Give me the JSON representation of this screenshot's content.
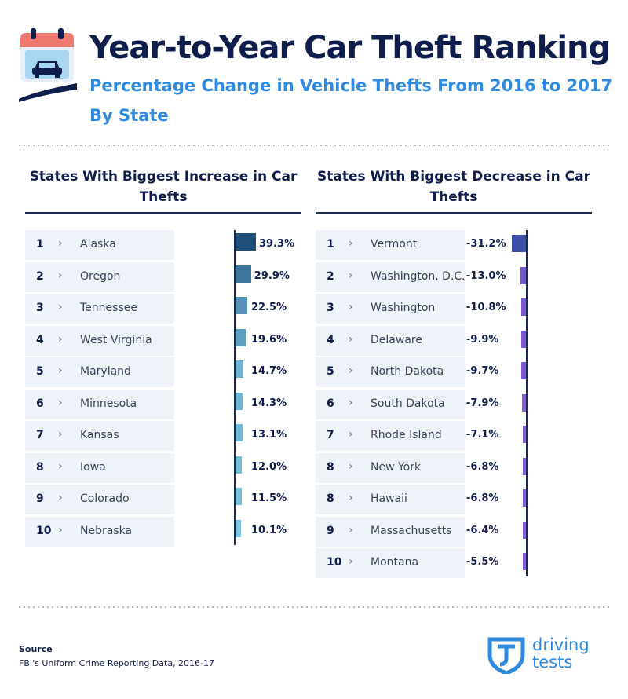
{
  "header": {
    "title": "Year-to-Year Car Theft Ranking",
    "subtitle": "Percentage Change in Vehicle Thefts From 2016 to 2017 By State",
    "icon": "calendar-car-icon"
  },
  "panels": {
    "increase_heading": "States With Biggest Increase in Car Thefts",
    "decrease_heading": "States With Biggest Decrease in Car Thefts"
  },
  "footer": {
    "source_label": "Source",
    "source_text": "FBI's Uniform Crime Reporting Data, 2016-17",
    "logo_line1": "driving",
    "logo_line2": "tests"
  },
  "colors": {
    "navy": "#0f1d4d",
    "accent_blue": "#2d8ae0",
    "increase_dark": "#1f4f78",
    "increase_light": "#7cc4e4",
    "decrease_dark": "#3b4fa6",
    "decrease_light": "#8b5ce6"
  },
  "chart_data": [
    {
      "type": "bar",
      "title": "States With Biggest Increase in Car Thefts",
      "ranks": [
        "1",
        "2",
        "3",
        "4",
        "5",
        "6",
        "7",
        "8",
        "9",
        "10"
      ],
      "categories": [
        "Alaska",
        "Oregon",
        "Tennessee",
        "West Virginia",
        "Maryland",
        "Minnesota",
        "Kansas",
        "Iowa",
        "Colorado",
        "Nebraska"
      ],
      "values": [
        39.3,
        29.9,
        22.5,
        19.6,
        14.7,
        14.3,
        13.1,
        12.0,
        11.5,
        10.1
      ],
      "labels": [
        "39.3%",
        "29.9%",
        "22.5%",
        "19.6%",
        "14.7%",
        "14.3%",
        "13.1%",
        "12.0%",
        "11.5%",
        "10.1%"
      ],
      "unit": "%"
    },
    {
      "type": "bar",
      "title": "States With Biggest Decrease in Car Thefts",
      "ranks": [
        "1",
        "2",
        "3",
        "4",
        "5",
        "6",
        "7",
        "8",
        "8",
        "9",
        "10"
      ],
      "categories": [
        "Vermont",
        "Washington, D.C.",
        "Washington",
        "Delaware",
        "North Dakota",
        "South Dakota",
        "Rhode Island",
        "New York",
        "Hawaii",
        "Massachusetts",
        "Montana"
      ],
      "values": [
        -31.2,
        -13.0,
        -10.8,
        -9.9,
        -9.7,
        -7.9,
        -7.1,
        -6.8,
        -6.8,
        -6.4,
        -5.5
      ],
      "labels": [
        "-31.2%",
        "-13.0%",
        "-10.8%",
        "-9.9%",
        "-9.7%",
        "-7.9%",
        "-7.1%",
        "-6.8%",
        "-6.8%",
        "-6.4%",
        "-5.5%"
      ],
      "unit": "%"
    }
  ]
}
